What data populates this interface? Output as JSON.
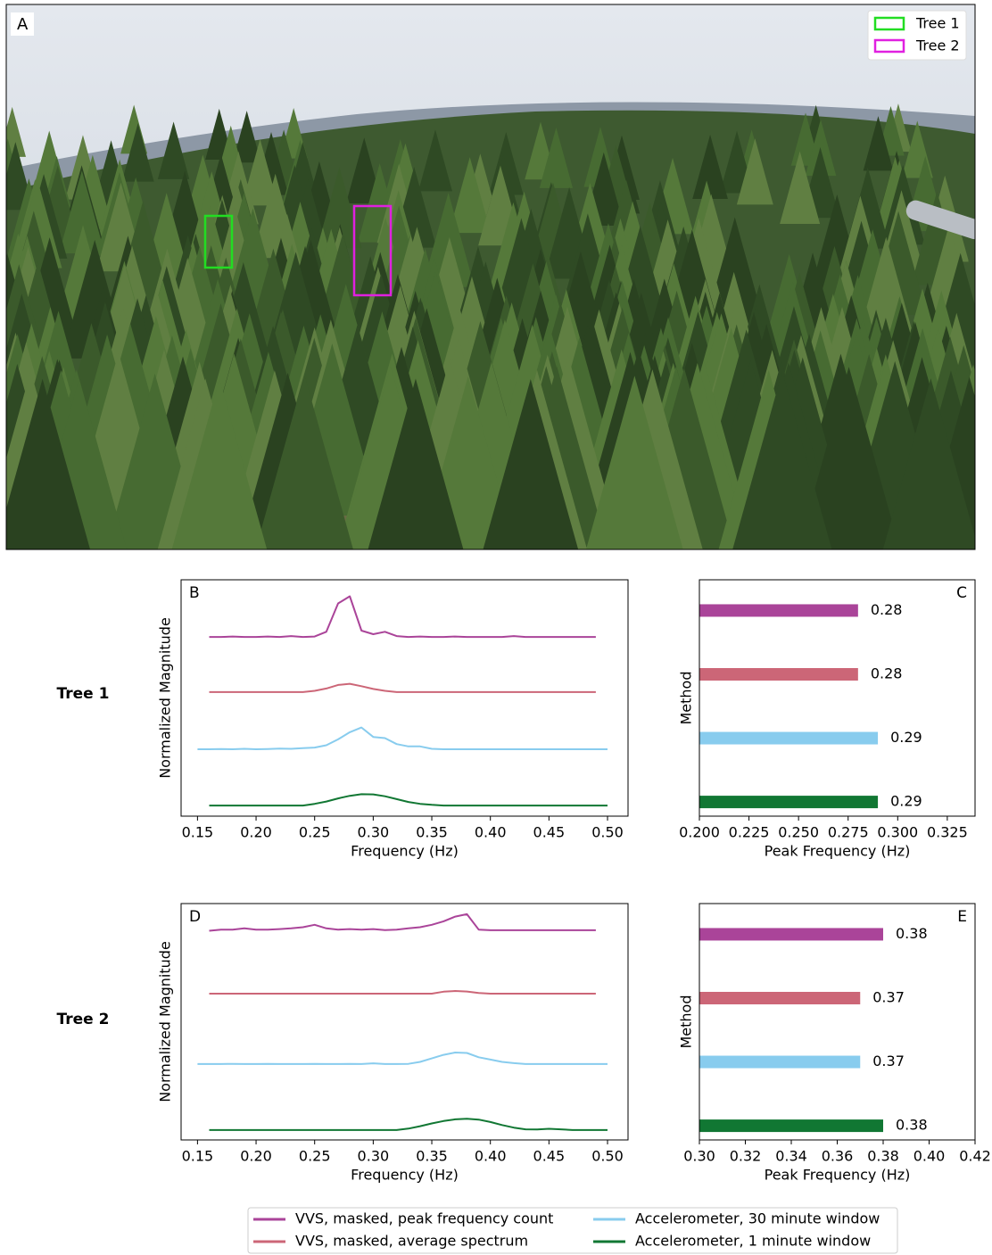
{
  "photo": {
    "label": "A",
    "boxes": [
      {
        "name": "Tree 1",
        "color": "#22dd22"
      },
      {
        "name": "Tree 2",
        "color": "#e020e0"
      }
    ]
  },
  "rows": [
    "Tree 1",
    "Tree 2"
  ],
  "chart_data": [
    {
      "type": "line",
      "label": "B",
      "x_label": "Frequency (Hz)",
      "y_label": "Normalized Magnitude",
      "x": [
        0.15,
        0.16,
        0.17,
        0.18,
        0.19,
        0.2,
        0.21,
        0.22,
        0.23,
        0.24,
        0.25,
        0.26,
        0.27,
        0.28,
        0.29,
        0.3,
        0.31,
        0.32,
        0.33,
        0.34,
        0.35,
        0.36,
        0.37,
        0.38,
        0.39,
        0.4,
        0.41,
        0.42,
        0.43,
        0.44,
        0.45,
        0.46,
        0.47,
        0.48,
        0.49,
        0.5
      ],
      "xlim": [
        0.136,
        0.5175
      ],
      "ylim": [
        0,
        10
      ],
      "xticks": [
        0.15,
        {
          "value": 0.2,
          "label": "0.20"
        },
        0.25,
        {
          "value": 0.3,
          "label": "0.30"
        },
        0.35,
        {
          "value": 0.4,
          "label": "0.40"
        },
        0.45,
        {
          "value": 0.5,
          "label": "0.50"
        }
      ],
      "series": [
        {
          "name": "VVS, masked, peak frequency count",
          "color": "#aa4499",
          "values": [
            null,
            7.58,
            7.58,
            7.6,
            7.58,
            7.58,
            7.6,
            7.58,
            7.62,
            7.58,
            7.6,
            7.8,
            9.0,
            9.3,
            7.85,
            7.7,
            7.8,
            7.62,
            7.58,
            7.6,
            7.58,
            7.58,
            7.6,
            7.58,
            7.58,
            7.58,
            7.58,
            7.62,
            7.58,
            7.58,
            7.58,
            7.58,
            7.58,
            7.58,
            7.58,
            null
          ]
        },
        {
          "name": "VVS, masked, average spectrum",
          "color": "#cc6677",
          "values": [
            null,
            5.25,
            5.25,
            5.25,
            5.25,
            5.25,
            5.25,
            5.25,
            5.25,
            5.25,
            5.3,
            5.4,
            5.55,
            5.6,
            5.5,
            5.38,
            5.3,
            5.25,
            5.25,
            5.25,
            5.25,
            5.25,
            5.25,
            5.25,
            5.25,
            5.25,
            5.25,
            5.25,
            5.25,
            5.25,
            5.25,
            5.25,
            5.25,
            5.25,
            5.25,
            null
          ]
        },
        {
          "name": "Accelerometer, 30 minute window",
          "color": "#88ccee",
          "values": [
            2.83,
            2.83,
            2.84,
            2.83,
            2.85,
            2.83,
            2.84,
            2.86,
            2.85,
            2.88,
            2.9,
            3.0,
            3.25,
            3.55,
            3.75,
            3.35,
            3.3,
            3.05,
            2.95,
            2.95,
            2.85,
            2.83,
            2.83,
            2.83,
            2.83,
            2.83,
            2.83,
            2.83,
            2.83,
            2.83,
            2.83,
            2.83,
            2.83,
            2.83,
            2.83,
            2.83
          ]
        },
        {
          "name": "Accelerometer, 1 minute window",
          "color": "#117733",
          "values": [
            null,
            0.45,
            0.45,
            0.45,
            0.45,
            0.45,
            0.45,
            0.45,
            0.45,
            0.45,
            0.52,
            0.62,
            0.75,
            0.86,
            0.93,
            0.92,
            0.84,
            0.72,
            0.6,
            0.52,
            0.48,
            0.45,
            0.45,
            0.45,
            0.45,
            0.45,
            0.45,
            0.45,
            0.45,
            0.45,
            0.45,
            0.45,
            0.45,
            0.45,
            0.45,
            0.45
          ]
        }
      ]
    },
    {
      "type": "bar",
      "label": "C",
      "x_label": "Peak Frequency (Hz)",
      "y_label": "Method",
      "categories": [
        null,
        null,
        null,
        null
      ],
      "values": [
        0.28,
        0.28,
        0.29,
        0.29
      ],
      "colors": [
        "#aa4499",
        "#cc6677",
        "#88ccee",
        "#117733"
      ],
      "xlim": [
        0.2,
        0.339
      ],
      "xticks": [
        {
          "value": 0.2,
          "label": "0.200"
        },
        0.225,
        {
          "value": 0.25,
          "label": "0.250"
        },
        0.275,
        {
          "value": 0.3,
          "label": "0.300"
        },
        0.325
      ]
    },
    {
      "type": "line",
      "label": "D",
      "x_label": "Frequency (Hz)",
      "y_label": "Normalized Magnitude",
      "x": [
        0.15,
        0.16,
        0.17,
        0.18,
        0.19,
        0.2,
        0.21,
        0.22,
        0.23,
        0.24,
        0.25,
        0.26,
        0.27,
        0.28,
        0.29,
        0.3,
        0.31,
        0.32,
        0.33,
        0.34,
        0.35,
        0.36,
        0.37,
        0.38,
        0.39,
        0.4,
        0.41,
        0.42,
        0.43,
        0.44,
        0.45,
        0.46,
        0.47,
        0.48,
        0.49,
        0.5
      ],
      "xlim": [
        0.136,
        0.5175
      ],
      "ylim": [
        0,
        10
      ],
      "xticks": [
        0.15,
        {
          "value": 0.2,
          "label": "0.20"
        },
        0.25,
        {
          "value": 0.3,
          "label": "0.30"
        },
        0.35,
        {
          "value": 0.4,
          "label": "0.40"
        },
        0.45,
        {
          "value": 0.5,
          "label": "0.50"
        }
      ],
      "series": [
        {
          "color": "#aa4499",
          "values": [
            null,
            8.85,
            8.9,
            8.9,
            8.95,
            8.9,
            8.9,
            8.92,
            8.95,
            9.0,
            9.1,
            8.95,
            8.9,
            8.92,
            8.9,
            8.92,
            8.88,
            8.9,
            8.95,
            9.0,
            9.1,
            9.25,
            9.45,
            9.55,
            8.9,
            8.87,
            8.87,
            8.87,
            8.87,
            8.87,
            8.87,
            8.87,
            8.87,
            8.87,
            8.87,
            null
          ]
        },
        {
          "color": "#cc6677",
          "values": [
            null,
            6.19,
            6.19,
            6.19,
            6.19,
            6.19,
            6.19,
            6.19,
            6.19,
            6.19,
            6.19,
            6.19,
            6.19,
            6.19,
            6.19,
            6.19,
            6.19,
            6.19,
            6.19,
            6.19,
            6.19,
            6.27,
            6.3,
            6.28,
            6.22,
            6.19,
            6.19,
            6.19,
            6.19,
            6.19,
            6.19,
            6.19,
            6.19,
            6.19,
            6.19,
            null
          ]
        },
        {
          "color": "#88ccee",
          "values": [
            3.21,
            3.21,
            3.21,
            3.22,
            3.21,
            3.21,
            3.22,
            3.21,
            3.21,
            3.21,
            3.22,
            3.21,
            3.21,
            3.22,
            3.21,
            3.24,
            3.21,
            3.21,
            3.22,
            3.3,
            3.45,
            3.6,
            3.7,
            3.68,
            3.5,
            3.4,
            3.3,
            3.25,
            3.21,
            3.21,
            3.21,
            3.21,
            3.21,
            3.21,
            3.21,
            3.21
          ]
        },
        {
          "color": "#117733",
          "values": [
            null,
            0.42,
            0.42,
            0.42,
            0.42,
            0.42,
            0.42,
            0.42,
            0.42,
            0.42,
            0.42,
            0.42,
            0.42,
            0.42,
            0.42,
            0.42,
            0.42,
            0.42,
            0.48,
            0.58,
            0.7,
            0.8,
            0.87,
            0.9,
            0.86,
            0.76,
            0.63,
            0.52,
            0.45,
            0.44,
            0.47,
            0.45,
            0.42,
            0.42,
            0.42,
            0.42
          ]
        }
      ]
    },
    {
      "type": "bar",
      "label": "E",
      "x_label": "Peak Frequency (Hz)",
      "y_label": "Method",
      "categories": [
        null,
        null,
        null,
        null
      ],
      "values": [
        0.38,
        0.37,
        0.37,
        0.38
      ],
      "colors": [
        "#aa4499",
        "#cc6677",
        "#88ccee",
        "#117733"
      ],
      "xlim": [
        0.3,
        0.42
      ],
      "xticks": [
        {
          "value": 0.3,
          "label": "0.30"
        },
        0.32,
        0.34,
        0.36,
        0.38,
        {
          "value": 0.4,
          "label": "0.40"
        },
        0.42
      ]
    }
  ]
}
